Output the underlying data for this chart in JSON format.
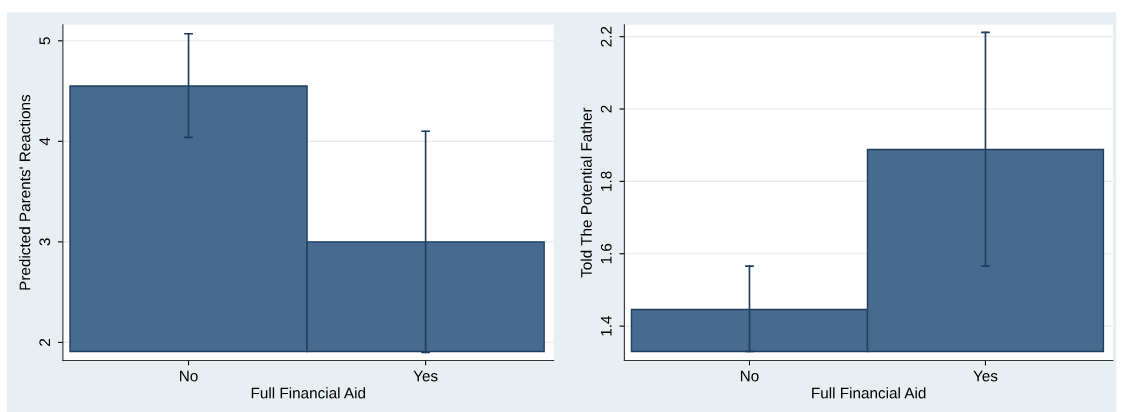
{
  "chart_data": [
    {
      "type": "bar",
      "xlabel": "Full Financial Aid",
      "ylabel": "Predicted Parents' Reactions",
      "categories": [
        "No",
        "Yes"
      ],
      "base": [
        1.91,
        1.91
      ],
      "values": [
        2.64,
        1.09
      ],
      "errors": [
        [
          4.04,
          5.07
        ],
        [
          1.9,
          4.1
        ]
      ],
      "color": "#476a8e",
      "ylim": [
        1.82,
        5.16
      ],
      "yticks": [
        2,
        3,
        4,
        5
      ],
      "grid": "y",
      "legend": false
    },
    {
      "type": "bar",
      "xlabel": "Full Financial Aid",
      "ylabel": "Told The Potential Father",
      "categories": [
        "No",
        "Yes"
      ],
      "base": [
        1.33,
        1.33
      ],
      "values": [
        0.116,
        0.558
      ],
      "errors": [
        [
          1.33,
          1.566
        ],
        [
          1.566,
          2.212
        ]
      ],
      "color": "#476a8e",
      "ylim": [
        1.305,
        2.233
      ],
      "yticks": [
        1.4,
        1.6,
        1.8,
        2,
        2.2
      ],
      "grid": "y",
      "legend": false
    }
  ]
}
